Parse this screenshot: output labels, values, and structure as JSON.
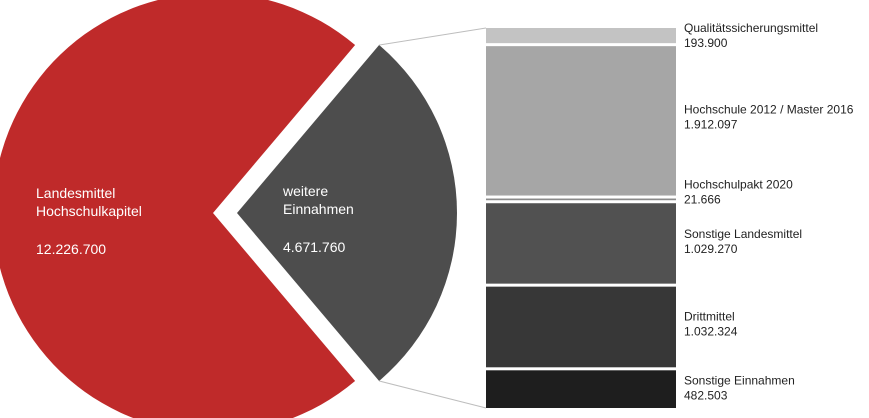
{
  "chart_data": {
    "type": "pie",
    "title": "",
    "pie": {
      "slices": [
        {
          "label_lines": [
            "Landesmittel",
            "Hochschulkapitel"
          ],
          "value_label": "12.226.700",
          "value": 12226700,
          "color": "#bf2a2a",
          "text_color": "#ffffff"
        },
        {
          "label_lines": [
            "weitere",
            "Einnahmen"
          ],
          "value_label": "4.671.760",
          "value": 4671760,
          "color": "#4d4d4d",
          "text_color": "#ffffff",
          "exploded": true
        }
      ]
    },
    "breakdown": {
      "type": "stacked-bar",
      "of_slice": "weitere Einnahmen",
      "segments": [
        {
          "label": "Qualitätssicherungsmittel",
          "value_label": "193.900",
          "value": 193900,
          "color": "#c3c3c3"
        },
        {
          "label": "Hochschule 2012 / Master 2016",
          "value_label": "1.912.097",
          "value": 1912097,
          "color": "#a6a6a6"
        },
        {
          "label": "Hochschulpakt 2020",
          "value_label": "21.666",
          "value": 21666,
          "color": "#8a8a8a"
        },
        {
          "label": "Sonstige Landesmittel",
          "value_label": "1.029.270",
          "value": 1029270,
          "color": "#515151"
        },
        {
          "label": "Drittmittel",
          "value_label": "1.032.324",
          "value": 1032324,
          "color": "#373737"
        },
        {
          "label": "Sonstige Einnahmen",
          "value_label": "482.503",
          "value": 482503,
          "color": "#1e1e1e"
        }
      ]
    }
  }
}
